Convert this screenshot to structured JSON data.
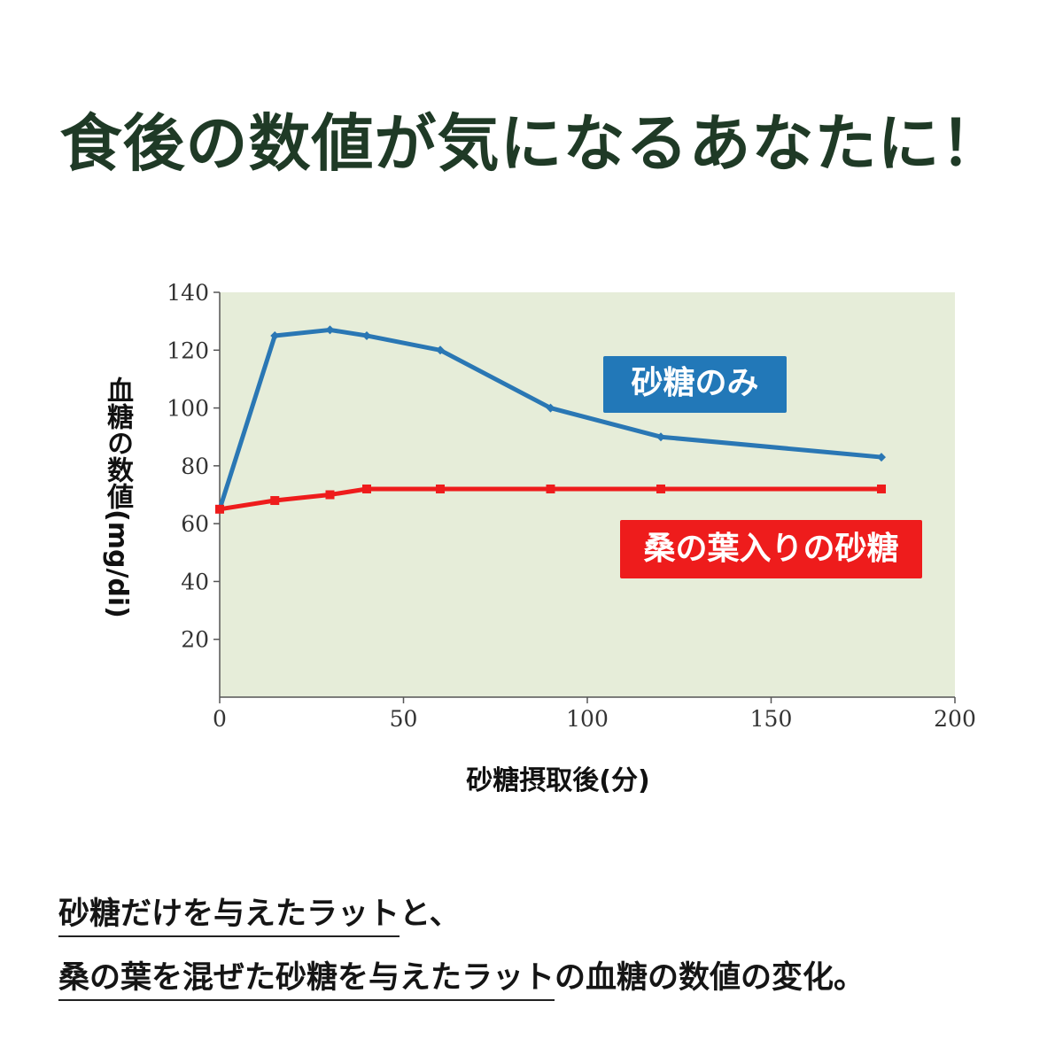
{
  "headline": "食後の数値が気になるあなたに！",
  "chart_data": {
    "type": "line",
    "ylabel": "血糖の数値(mg/di)",
    "xlabel": "砂糖摂取後(分)",
    "xlim": [
      0,
      200
    ],
    "ylim": [
      0,
      140
    ],
    "xticks": [
      "0",
      "50",
      "100",
      "150",
      "200"
    ],
    "yticks": [
      "20",
      "40",
      "60",
      "80",
      "100",
      "120",
      "140"
    ],
    "grid": false,
    "background": "#e6edd9",
    "series": [
      {
        "name": "砂糖のみ",
        "color": "#2a77b4",
        "marker": "diamond",
        "points": [
          [
            0,
            65
          ],
          [
            15,
            125
          ],
          [
            30,
            127
          ],
          [
            40,
            125
          ],
          [
            60,
            120
          ],
          [
            90,
            100
          ],
          [
            120,
            90
          ],
          [
            180,
            83
          ]
        ]
      },
      {
        "name": "桑の葉入りの砂糖",
        "color": "#ee1c1c",
        "marker": "square",
        "points": [
          [
            0,
            65
          ],
          [
            15,
            68
          ],
          [
            30,
            70
          ],
          [
            40,
            72
          ],
          [
            60,
            72
          ],
          [
            90,
            72
          ],
          [
            120,
            72
          ],
          [
            180,
            72
          ]
        ]
      }
    ]
  },
  "caption": {
    "line1_underlined": "砂糖だけを与えたラット",
    "line1_rest": "と、",
    "line2_underlined": "桑の葉を混ぜた砂糖を与えたラット",
    "line2_rest": "の血糖の数値の変化。"
  }
}
